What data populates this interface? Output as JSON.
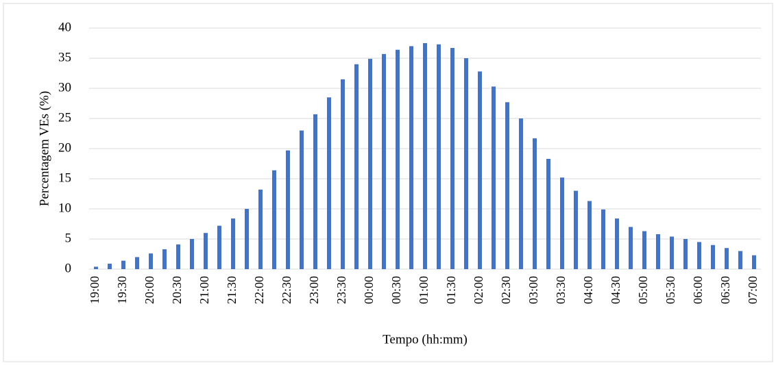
{
  "chart_data": {
    "type": "bar",
    "x_label": "Tempo (hh:mm)",
    "y_label": "Percentagem VEs (%)",
    "categories": [
      "19:00",
      null,
      "19:30",
      null,
      "20:00",
      null,
      "20:30",
      null,
      "21:00",
      null,
      "21:30",
      null,
      "22:00",
      null,
      "22:30",
      null,
      "23:00",
      null,
      "23:30",
      null,
      "00:00",
      null,
      "00:30",
      null,
      "01:00",
      null,
      "01:30",
      null,
      "02:00",
      null,
      "02:30",
      null,
      "03:00",
      null,
      "03:30",
      null,
      "04:00",
      null,
      "04:30",
      null,
      "05:00",
      null,
      "05:30",
      null,
      "06:00",
      null,
      "06:30",
      null,
      "07:00"
    ],
    "values": [
      0.4,
      0.9,
      1.4,
      2.0,
      2.6,
      3.3,
      4.1,
      5.0,
      6.0,
      7.2,
      8.4,
      10.0,
      13.2,
      16.4,
      19.7,
      23.0,
      25.7,
      28.5,
      31.5,
      34.0,
      34.9,
      35.7,
      36.4,
      37.0,
      37.5,
      37.3,
      36.7,
      35.0,
      32.8,
      30.3,
      27.7,
      25.0,
      21.7,
      18.3,
      15.2,
      13.0,
      11.3,
      9.9,
      8.4,
      7.0,
      6.3,
      5.8,
      5.4,
      5.0,
      4.5,
      4.0,
      3.5,
      3.0,
      2.3
    ],
    "color": "#4472c4",
    "ylim": [
      0,
      40
    ],
    "yticks": [
      0,
      5,
      10,
      15,
      20,
      25,
      30,
      35,
      40
    ],
    "grid": true
  }
}
